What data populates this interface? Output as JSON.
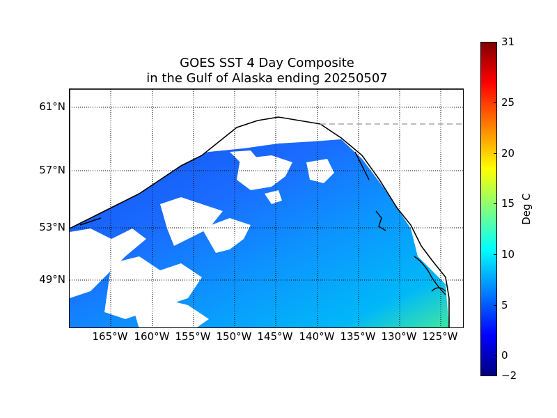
{
  "title_line1": "GOES SST 4 Day Composite",
  "title_line2": "in the Gulf of Alaska ending 20250507",
  "lat_labels": [
    "61°N",
    "57°N",
    "53°N",
    "49°N"
  ],
  "lon_labels": [
    "165°W",
    "160°W",
    "155°W",
    "150°W",
    "145°W",
    "140°W",
    "135°W",
    "130°W",
    "125°W"
  ],
  "colorbar": {
    "label": "Deg C",
    "ticks": [
      "31",
      "25",
      "20",
      "15",
      "10",
      "5",
      "0",
      "−2"
    ],
    "min": -2,
    "max": 31,
    "colormap": "jet"
  },
  "colors": {
    "ocean_cold": "#1a66ff",
    "ocean_mid": "#00b4ff",
    "ocean_warm": "#30e0b0",
    "land": "#ffffff",
    "coast": "#000000"
  }
}
